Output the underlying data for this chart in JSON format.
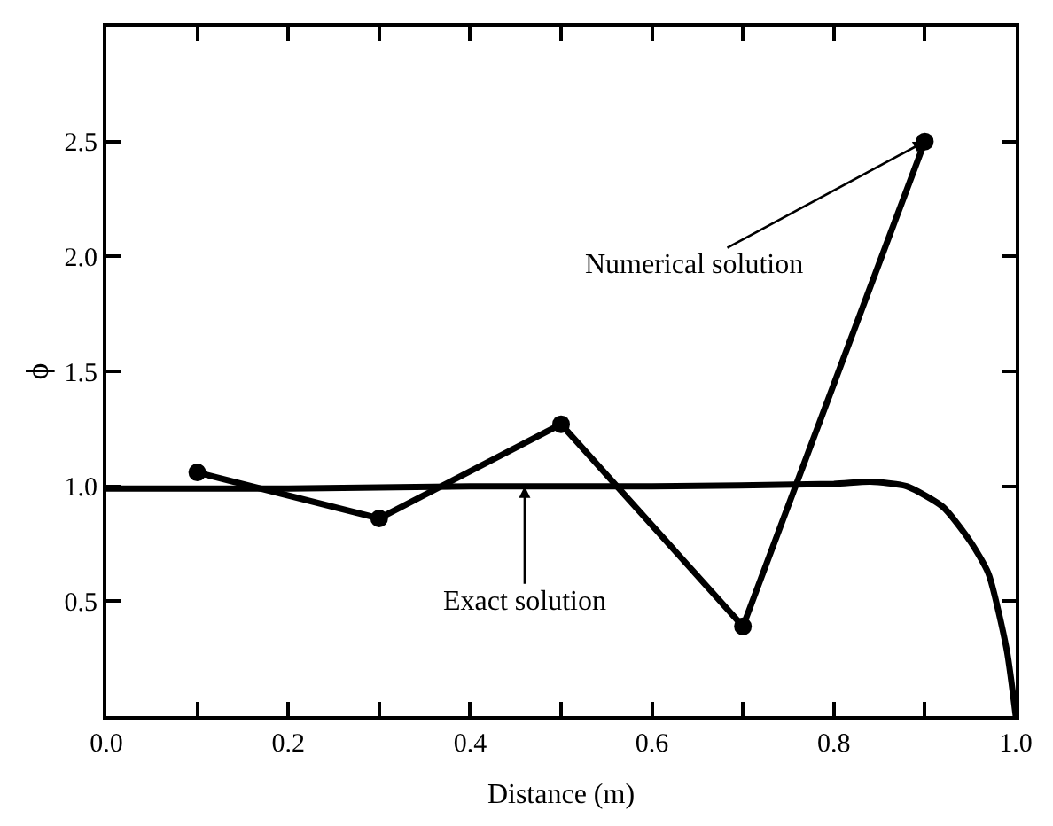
{
  "chart_data": {
    "type": "line",
    "xlabel": "Distance (m)",
    "ylabel": "ϕ",
    "xlim": [
      0,
      1
    ],
    "ylim": [
      0,
      3
    ],
    "xticks": [
      {
        "value": 0,
        "label": "0.0"
      },
      {
        "value": 0.1,
        "label": null
      },
      0.2,
      {
        "value": 0.3,
        "label": null
      },
      0.4,
      {
        "value": 0.5,
        "label": null
      },
      0.6,
      {
        "value": 0.7,
        "label": null
      },
      0.8,
      {
        "value": 0.9,
        "label": null
      },
      {
        "value": 1,
        "label": "1.0"
      }
    ],
    "yticks": [
      0.5,
      {
        "value": 1,
        "label": "1.0"
      },
      1.5,
      {
        "value": 2,
        "label": "2.0"
      },
      2.5
    ],
    "series": [
      {
        "color": "#000000",
        "marker": "circle",
        "x": [
          0.1,
          0.3,
          0.5,
          0.7,
          0.9
        ],
        "values": [
          1.06,
          0.86,
          1.27,
          0.39,
          2.5
        ]
      },
      {
        "color": "#000000",
        "marker": "none",
        "x": [
          0,
          0.2,
          0.4,
          0.6,
          0.8,
          0.84,
          0.88,
          0.92,
          0.95,
          0.97,
          0.99,
          1.0
        ],
        "values": [
          0.99,
          0.99,
          1.0,
          1.0,
          1.01,
          1.02,
          1.0,
          0.91,
          0.76,
          0.62,
          0.29,
          0.0
        ]
      }
    ],
    "annotations": [
      {
        "text": "Numerical solution",
        "x": 0.9,
        "y": 2.5
      },
      {
        "text": "Exact solution",
        "x": 0.46,
        "y": 1.0
      }
    ]
  }
}
